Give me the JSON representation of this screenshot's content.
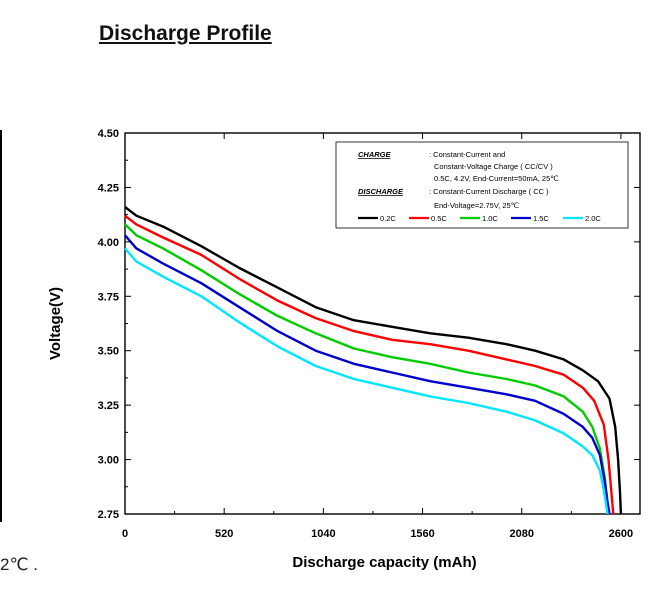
{
  "page": {
    "heading": "Discharge Profile",
    "stray_note": "2℃ ."
  },
  "chart_data": {
    "type": "line",
    "title": "",
    "xlabel": "Discharge capacity (mAh)",
    "ylabel": "Voltage(V)",
    "xlim": [
      0,
      2700
    ],
    "ylim": [
      2.75,
      4.5
    ],
    "xticks": [
      "0",
      "520",
      "1040",
      "1560",
      "2080",
      "2600"
    ],
    "xtick_values": [
      0,
      520,
      1040,
      1560,
      2080,
      2600
    ],
    "yticks": [
      "2.75",
      "3.00",
      "3.25",
      "3.50",
      "3.75",
      "4.00",
      "4.25",
      "4.50"
    ],
    "ytick_values": [
      2.75,
      3.0,
      3.25,
      3.5,
      3.75,
      4.0,
      4.25,
      4.5
    ],
    "grid": false,
    "legend_position": "top-right",
    "legend_info": {
      "charge_key": "CHARGE",
      "charge_line1": ": Constant-Current and",
      "charge_line2": "Constant-Voltage Charge ( CC/CV )",
      "charge_line3": "0.5C, 4.2V, End-Current=50mA, 25℃",
      "discharge_key": "DISCHARGE",
      "discharge_line1": ": Constant-Current Discharge ( CC )",
      "discharge_line2": "End-Voltage=2.75V, 25℃"
    },
    "series": [
      {
        "name": "0.2C",
        "color": "#000000",
        "points": [
          [
            0,
            4.16
          ],
          [
            60,
            4.12
          ],
          [
            200,
            4.07
          ],
          [
            400,
            3.98
          ],
          [
            600,
            3.88
          ],
          [
            800,
            3.79
          ],
          [
            1000,
            3.7
          ],
          [
            1200,
            3.64
          ],
          [
            1400,
            3.61
          ],
          [
            1600,
            3.58
          ],
          [
            1800,
            3.56
          ],
          [
            2000,
            3.53
          ],
          [
            2150,
            3.5
          ],
          [
            2300,
            3.46
          ],
          [
            2400,
            3.41
          ],
          [
            2480,
            3.36
          ],
          [
            2540,
            3.28
          ],
          [
            2570,
            3.15
          ],
          [
            2585,
            3.0
          ],
          [
            2595,
            2.85
          ],
          [
            2600,
            2.75
          ]
        ]
      },
      {
        "name": "0.5C",
        "color": "#ff0000",
        "points": [
          [
            0,
            4.12
          ],
          [
            60,
            4.08
          ],
          [
            200,
            4.02
          ],
          [
            400,
            3.94
          ],
          [
            600,
            3.83
          ],
          [
            800,
            3.73
          ],
          [
            1000,
            3.65
          ],
          [
            1200,
            3.59
          ],
          [
            1400,
            3.55
          ],
          [
            1600,
            3.53
          ],
          [
            1800,
            3.5
          ],
          [
            2000,
            3.46
          ],
          [
            2150,
            3.43
          ],
          [
            2300,
            3.39
          ],
          [
            2400,
            3.33
          ],
          [
            2460,
            3.27
          ],
          [
            2510,
            3.16
          ],
          [
            2535,
            3.0
          ],
          [
            2550,
            2.85
          ],
          [
            2560,
            2.75
          ]
        ]
      },
      {
        "name": "1.0C",
        "color": "#00cc00",
        "points": [
          [
            0,
            4.08
          ],
          [
            60,
            4.03
          ],
          [
            200,
            3.97
          ],
          [
            400,
            3.87
          ],
          [
            600,
            3.76
          ],
          [
            800,
            3.66
          ],
          [
            1000,
            3.58
          ],
          [
            1200,
            3.51
          ],
          [
            1400,
            3.47
          ],
          [
            1600,
            3.44
          ],
          [
            1800,
            3.4
          ],
          [
            2000,
            3.37
          ],
          [
            2150,
            3.34
          ],
          [
            2300,
            3.29
          ],
          [
            2400,
            3.22
          ],
          [
            2450,
            3.15
          ],
          [
            2490,
            3.05
          ],
          [
            2515,
            2.92
          ],
          [
            2530,
            2.8
          ],
          [
            2540,
            2.75
          ]
        ]
      },
      {
        "name": "1.5C",
        "color": "#0000cc",
        "points": [
          [
            0,
            4.03
          ],
          [
            60,
            3.97
          ],
          [
            200,
            3.9
          ],
          [
            400,
            3.81
          ],
          [
            600,
            3.7
          ],
          [
            800,
            3.59
          ],
          [
            1000,
            3.5
          ],
          [
            1200,
            3.44
          ],
          [
            1400,
            3.4
          ],
          [
            1600,
            3.36
          ],
          [
            1800,
            3.33
          ],
          [
            2000,
            3.3
          ],
          [
            2150,
            3.27
          ],
          [
            2300,
            3.21
          ],
          [
            2400,
            3.15
          ],
          [
            2450,
            3.1
          ],
          [
            2490,
            3.02
          ],
          [
            2515,
            2.9
          ],
          [
            2530,
            2.8
          ],
          [
            2540,
            2.75
          ]
        ]
      },
      {
        "name": "2.0C",
        "color": "#00e6ff",
        "points": [
          [
            0,
            3.97
          ],
          [
            60,
            3.91
          ],
          [
            200,
            3.84
          ],
          [
            400,
            3.75
          ],
          [
            600,
            3.63
          ],
          [
            800,
            3.52
          ],
          [
            1000,
            3.43
          ],
          [
            1200,
            3.37
          ],
          [
            1400,
            3.33
          ],
          [
            1600,
            3.29
          ],
          [
            1800,
            3.26
          ],
          [
            2000,
            3.22
          ],
          [
            2150,
            3.18
          ],
          [
            2300,
            3.12
          ],
          [
            2400,
            3.06
          ],
          [
            2450,
            3.02
          ],
          [
            2490,
            2.95
          ],
          [
            2510,
            2.86
          ],
          [
            2525,
            2.78
          ],
          [
            2530,
            2.75
          ]
        ]
      }
    ]
  }
}
